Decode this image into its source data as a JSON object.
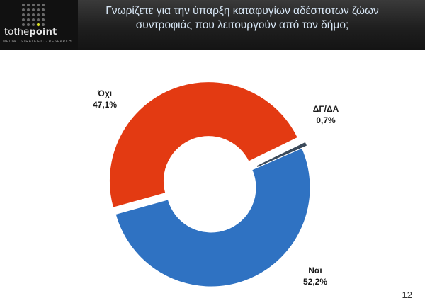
{
  "header": {
    "title": "Γνωρίζετε για την ύπαρξη καταφυγίων αδέσποτων ζώων συντροφιάς που λειτουργούν από τον δήμο;",
    "logo_text_1": "tothe",
    "logo_text_2": "point",
    "logo_tagline": "MEDIA · STRATEGIC · RESEARCH"
  },
  "footer": {
    "page_number": "12"
  },
  "colors": {
    "oxi": "#e33a12",
    "nai": "#2f72c2",
    "dg": "#3b4a5a"
  },
  "chart_data": {
    "type": "pie",
    "variant": "donut",
    "categories": [
      "Όχι",
      "ΔΓ/ΔΑ",
      "Ναι"
    ],
    "values": [
      47.1,
      0.7,
      52.2
    ],
    "value_labels": [
      "47,1%",
      "0,7%",
      "52,2%"
    ],
    "title": "",
    "legend": "none"
  }
}
